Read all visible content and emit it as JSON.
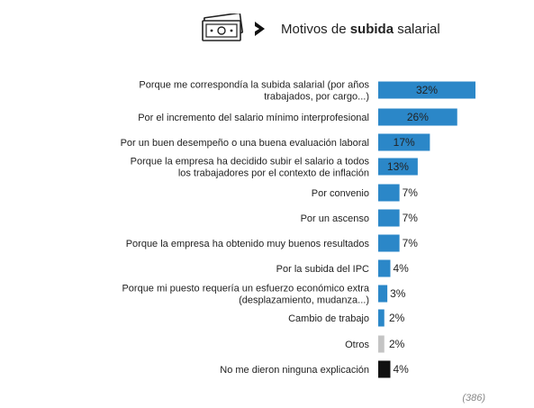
{
  "header": {
    "title_prefix": "Motivos de ",
    "title_bold": "subida",
    "title_suffix": " salarial",
    "icon": "money-bill-icon",
    "arrow_icon": "chevron-right-icon"
  },
  "footnote": "(386)",
  "colors": {
    "primary": "#2b87c8",
    "others": "#c4c4c4",
    "no_explanation": "#111111"
  },
  "chart_data": {
    "type": "bar",
    "orientation": "horizontal",
    "categories": [
      [
        "Porque me correspondía la subida salarial (por años",
        "trabajados, por cargo...)"
      ],
      [
        "Por el incremento del salario mínimo interprofesional"
      ],
      [
        "Por un buen desempeño o una buena evaluación laboral"
      ],
      [
        "Porque la empresa ha decidido subir el salario a todos",
        "los trabajadores por el contexto de inflación"
      ],
      [
        "Por convenio"
      ],
      [
        "Por un ascenso"
      ],
      [
        "Porque la empresa ha obtenido muy buenos resultados"
      ],
      [
        "Por la subida del IPC"
      ],
      [
        "Porque mi puesto requería un esfuerzo económico extra",
        "(desplazamiento, mudanza...)"
      ],
      [
        "Cambio de trabajo"
      ],
      [
        "Otros"
      ],
      [
        "No me dieron ninguna explicación"
      ]
    ],
    "values": [
      32,
      26,
      17,
      13,
      7,
      7,
      7,
      4,
      3,
      2,
      2,
      4
    ],
    "value_labels": [
      "32%",
      "26%",
      "17%",
      "13%",
      "7%",
      "7%",
      "7%",
      "4%",
      "3%",
      "2%",
      "2%",
      "4%"
    ],
    "bar_colors": [
      "#2b87c8",
      "#2b87c8",
      "#2b87c8",
      "#2b87c8",
      "#2b87c8",
      "#2b87c8",
      "#2b87c8",
      "#2b87c8",
      "#2b87c8",
      "#2b87c8",
      "#c4c4c4",
      "#111111"
    ],
    "xlim": [
      0,
      32
    ],
    "grid": false,
    "legend": "none",
    "sample_size": "(386)"
  }
}
